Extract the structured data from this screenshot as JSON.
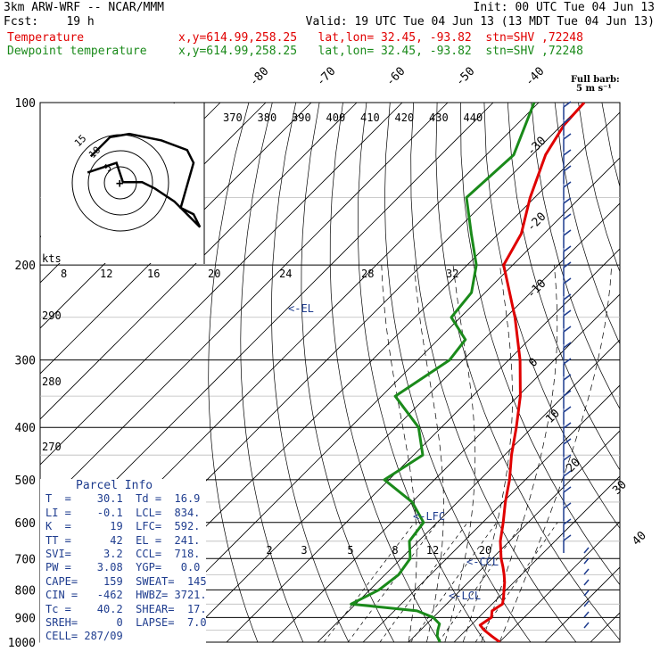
{
  "header": {
    "line1_left": "3km ARW-WRF -- NCAR/MMM",
    "line1_right": "Init: 00 UTC Tue 04 Jun 13",
    "line2_left": "Fcst:    19 h",
    "line2_right": "Valid: 19 UTC Tue 04 Jun 13 (13 MDT Tue 04 Jun 13)",
    "temp_label": "Temperature",
    "temp_info": "x,y=614.99,258.25   lat,lon= 32.45, -93.82  stn=SHV ,72248",
    "dew_label": "Dewpoint temperature",
    "dew_info": "x,y=614.99,258.25   lat,lon= 32.45, -93.82  stn=SHV ,72248",
    "temp_color": "#e00000",
    "dew_color": "#1a8a1a"
  },
  "barb_legend": {
    "line1": "Full barb:",
    "line2": "5 m s⁻¹"
  },
  "parcel": {
    "title": "Parcel Info",
    "rows": [
      "T  =    30.1  Td =  16.9",
      "LI =    -0.1  LCL=  834.",
      "K  =      19  LFC=  592.",
      "TT =      42  EL =  241.",
      "SVI=     3.2  CCL=  718.",
      "PW =    3.08  YGP=   0.0",
      "CAPE=    159  SWEAT=  145",
      "CIN =   -462  HWBZ= 3721.",
      "Tc =    40.2  SHEAR=  17.",
      "SREH=      0  LAPSE=  7.0",
      "CELL= 287/09"
    ]
  },
  "chart_data": {
    "type": "line",
    "title": "",
    "xlabel": "",
    "ylabel": "",
    "y_scale": "log-pressure (reversed)",
    "pressure_levels": [
      100,
      200,
      300,
      400,
      500,
      600,
      700,
      800,
      900,
      1000
    ],
    "isotherm_labels": [
      -80,
      -70,
      -60,
      -50,
      -40,
      -30,
      -20,
      -10,
      0,
      10,
      20,
      30,
      40
    ],
    "theta_labels": [
      370,
      380,
      390,
      400,
      410,
      420,
      430,
      440
    ],
    "theta_e_labels": [
      290,
      280,
      270
    ],
    "kts_label": "kts",
    "kts_values": [
      8,
      12,
      16,
      20,
      24,
      28,
      32
    ],
    "mixing_ratio_labels": [
      2,
      3,
      5,
      8,
      12,
      20
    ],
    "hodograph_rings": [
      5,
      10,
      15
    ],
    "annotations": [
      "<-EL",
      "<-LFC",
      "<-CCL",
      "<-LCL"
    ],
    "series": [
      {
        "name": "Temperature",
        "color": "#e00000",
        "points": [
          [
            1000,
            30.1
          ],
          [
            975,
            27.0
          ],
          [
            950,
            24.0
          ],
          [
            930,
            22.0
          ],
          [
            900,
            22.8
          ],
          [
            875,
            21.5
          ],
          [
            850,
            22.3
          ],
          [
            825,
            21.0
          ],
          [
            800,
            19.5
          ],
          [
            775,
            18.0
          ],
          [
            750,
            16.2
          ],
          [
            725,
            14.2
          ],
          [
            700,
            12.0
          ],
          [
            650,
            8.0
          ],
          [
            600,
            4.5
          ],
          [
            550,
            0.5
          ],
          [
            500,
            -3.5
          ],
          [
            450,
            -8.5
          ],
          [
            400,
            -13.5
          ],
          [
            350,
            -19.5
          ],
          [
            300,
            -27.5
          ],
          [
            250,
            -38.0
          ],
          [
            200,
            -52.0
          ],
          [
            175,
            -55.0
          ],
          [
            150,
            -61.0
          ],
          [
            125,
            -67.0
          ],
          [
            110,
            -69.5
          ],
          [
            100,
            -70.0
          ]
        ]
      },
      {
        "name": "Dewpoint temperature",
        "color": "#1a8a1a",
        "points": [
          [
            1000,
            16.9
          ],
          [
            975,
            15.0
          ],
          [
            950,
            13.8
          ],
          [
            925,
            12.8
          ],
          [
            900,
            10.0
          ],
          [
            875,
            5.0
          ],
          [
            850,
            -11.0
          ],
          [
            800,
            -8.0
          ],
          [
            750,
            -7.0
          ],
          [
            700,
            -8.0
          ],
          [
            650,
            -12.0
          ],
          [
            600,
            -13.0
          ],
          [
            550,
            -20.0
          ],
          [
            500,
            -31.0
          ],
          [
            450,
            -28.0
          ],
          [
            400,
            -35.0
          ],
          [
            350,
            -47.0
          ],
          [
            300,
            -43.0
          ],
          [
            275,
            -44.0
          ],
          [
            250,
            -52.0
          ],
          [
            225,
            -53.0
          ],
          [
            200,
            -58.0
          ],
          [
            175,
            -66.0
          ],
          [
            150,
            -75.0
          ],
          [
            125,
            -74.0
          ],
          [
            100,
            -81.0
          ]
        ]
      }
    ],
    "hodograph_trace_kts": [
      [
        -12,
        6
      ],
      [
        -6,
        12
      ],
      [
        0,
        13
      ],
      [
        10,
        11
      ],
      [
        18,
        8
      ],
      [
        20,
        4
      ],
      [
        16,
        -10
      ],
      [
        20,
        -12
      ],
      [
        22,
        -16
      ],
      [
        14,
        -8
      ],
      [
        8,
        -4
      ],
      [
        4,
        -2
      ],
      [
        -2,
        -2
      ],
      [
        -4,
        4
      ],
      [
        -10,
        2
      ],
      [
        -13,
        1
      ]
    ]
  }
}
